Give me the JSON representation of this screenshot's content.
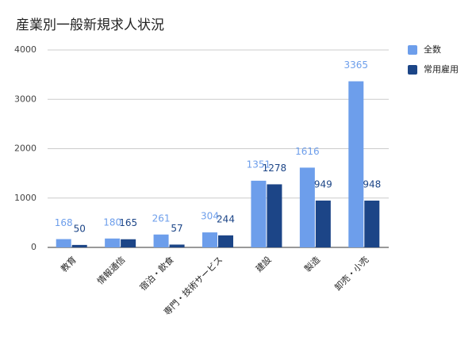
{
  "chart_data": {
    "type": "bar",
    "title": "産業別一般新規求人状況",
    "categories": [
      "教育",
      "情報通信",
      "宿泊・飲食",
      "専門・技術サービス",
      "建設",
      "製造",
      "卸売・小売"
    ],
    "series": [
      {
        "name": "全数",
        "color": "#6d9eeb",
        "values": [
          168,
          180,
          261,
          304,
          1351,
          1616,
          3365
        ]
      },
      {
        "name": "常用雇用",
        "color": "#1c4587",
        "values": [
          50,
          165,
          57,
          244,
          1278,
          949,
          948
        ]
      }
    ],
    "ylim": [
      0,
      4000
    ],
    "yticks": [
      0,
      1000,
      2000,
      3000,
      4000
    ],
    "grid": true,
    "legend": "right"
  }
}
